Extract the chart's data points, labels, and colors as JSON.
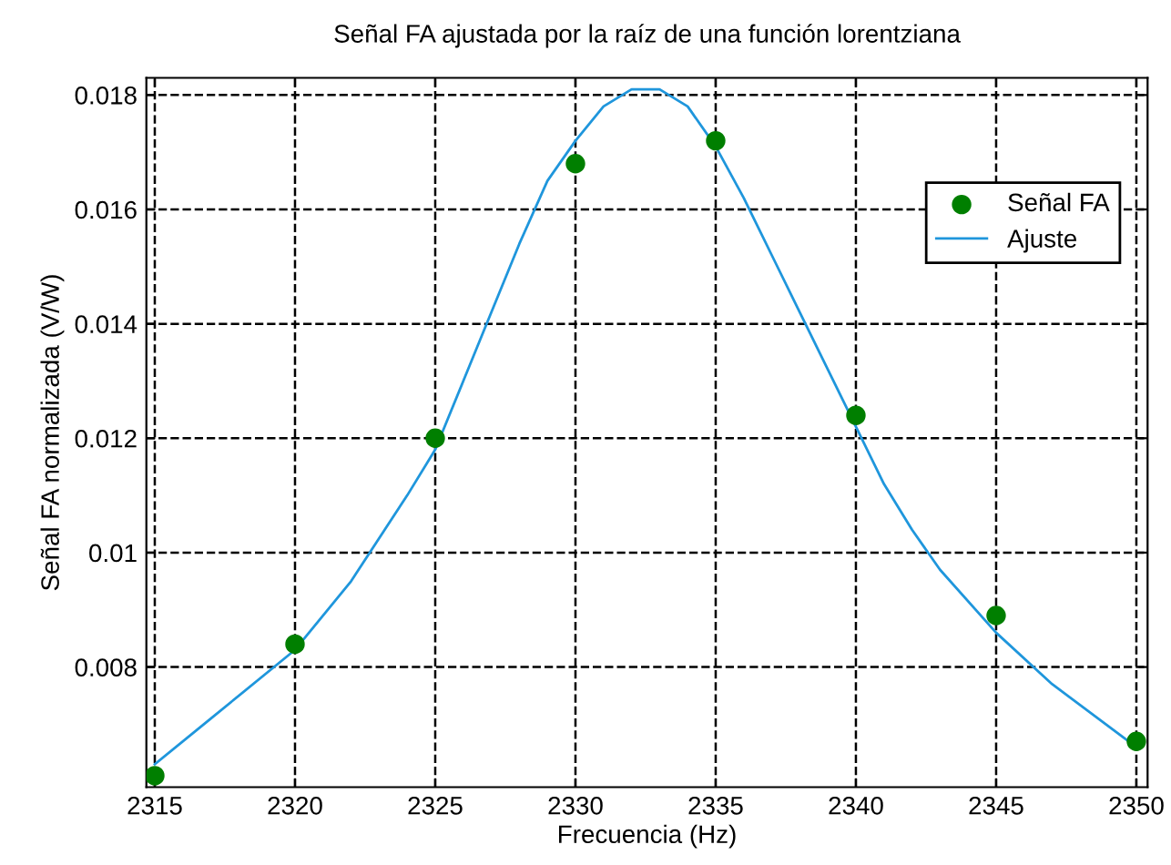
{
  "chart_data": {
    "type": "scatter",
    "title": "Señal FA ajustada por la raíz de una función lorentziana",
    "xlabel": "Frecuencia (Hz)",
    "ylabel": "Señal FA normalizada (V/W)",
    "series": [
      {
        "name": "Señal FA",
        "color": "#007f00",
        "marker": "circle",
        "x": [
          2315,
          2320,
          2325,
          2330,
          2335,
          2340,
          2345,
          2350
        ],
        "values": [
          0.0061,
          0.0084,
          0.012,
          0.0168,
          0.0172,
          0.0124,
          0.0089,
          0.0067
        ]
      },
      {
        "name": "Ajuste",
        "type": "line",
        "color": "#1f96dc",
        "line_style": "solid",
        "x": [
          2315,
          2317,
          2320,
          2322,
          2324,
          2325,
          2326,
          2327,
          2328,
          2329,
          2330,
          2331,
          2332,
          2333,
          2334,
          2335,
          2336,
          2337,
          2338,
          2339,
          2340,
          2341,
          2342,
          2343,
          2345,
          2347,
          2350
        ],
        "values": [
          0.0063,
          0.0071,
          0.0083,
          0.0095,
          0.011,
          0.0118,
          0.013,
          0.0142,
          0.0154,
          0.0165,
          0.0172,
          0.0178,
          0.0181,
          0.0181,
          0.0178,
          0.0171,
          0.0162,
          0.0152,
          0.0142,
          0.0132,
          0.0122,
          0.0112,
          0.0104,
          0.0097,
          0.0086,
          0.0077,
          0.0066
        ]
      }
    ],
    "xlim": [
      2314.7,
      2350.4
    ],
    "xticks": [
      2315,
      2320,
      2325,
      2330,
      2335,
      2340,
      2345,
      2350
    ],
    "ylim": [
      0.0059,
      0.0183
    ],
    "yticks": [
      0.008,
      0.01,
      0.012,
      0.014,
      0.016,
      0.018
    ],
    "grid": true,
    "legend": "top right"
  }
}
